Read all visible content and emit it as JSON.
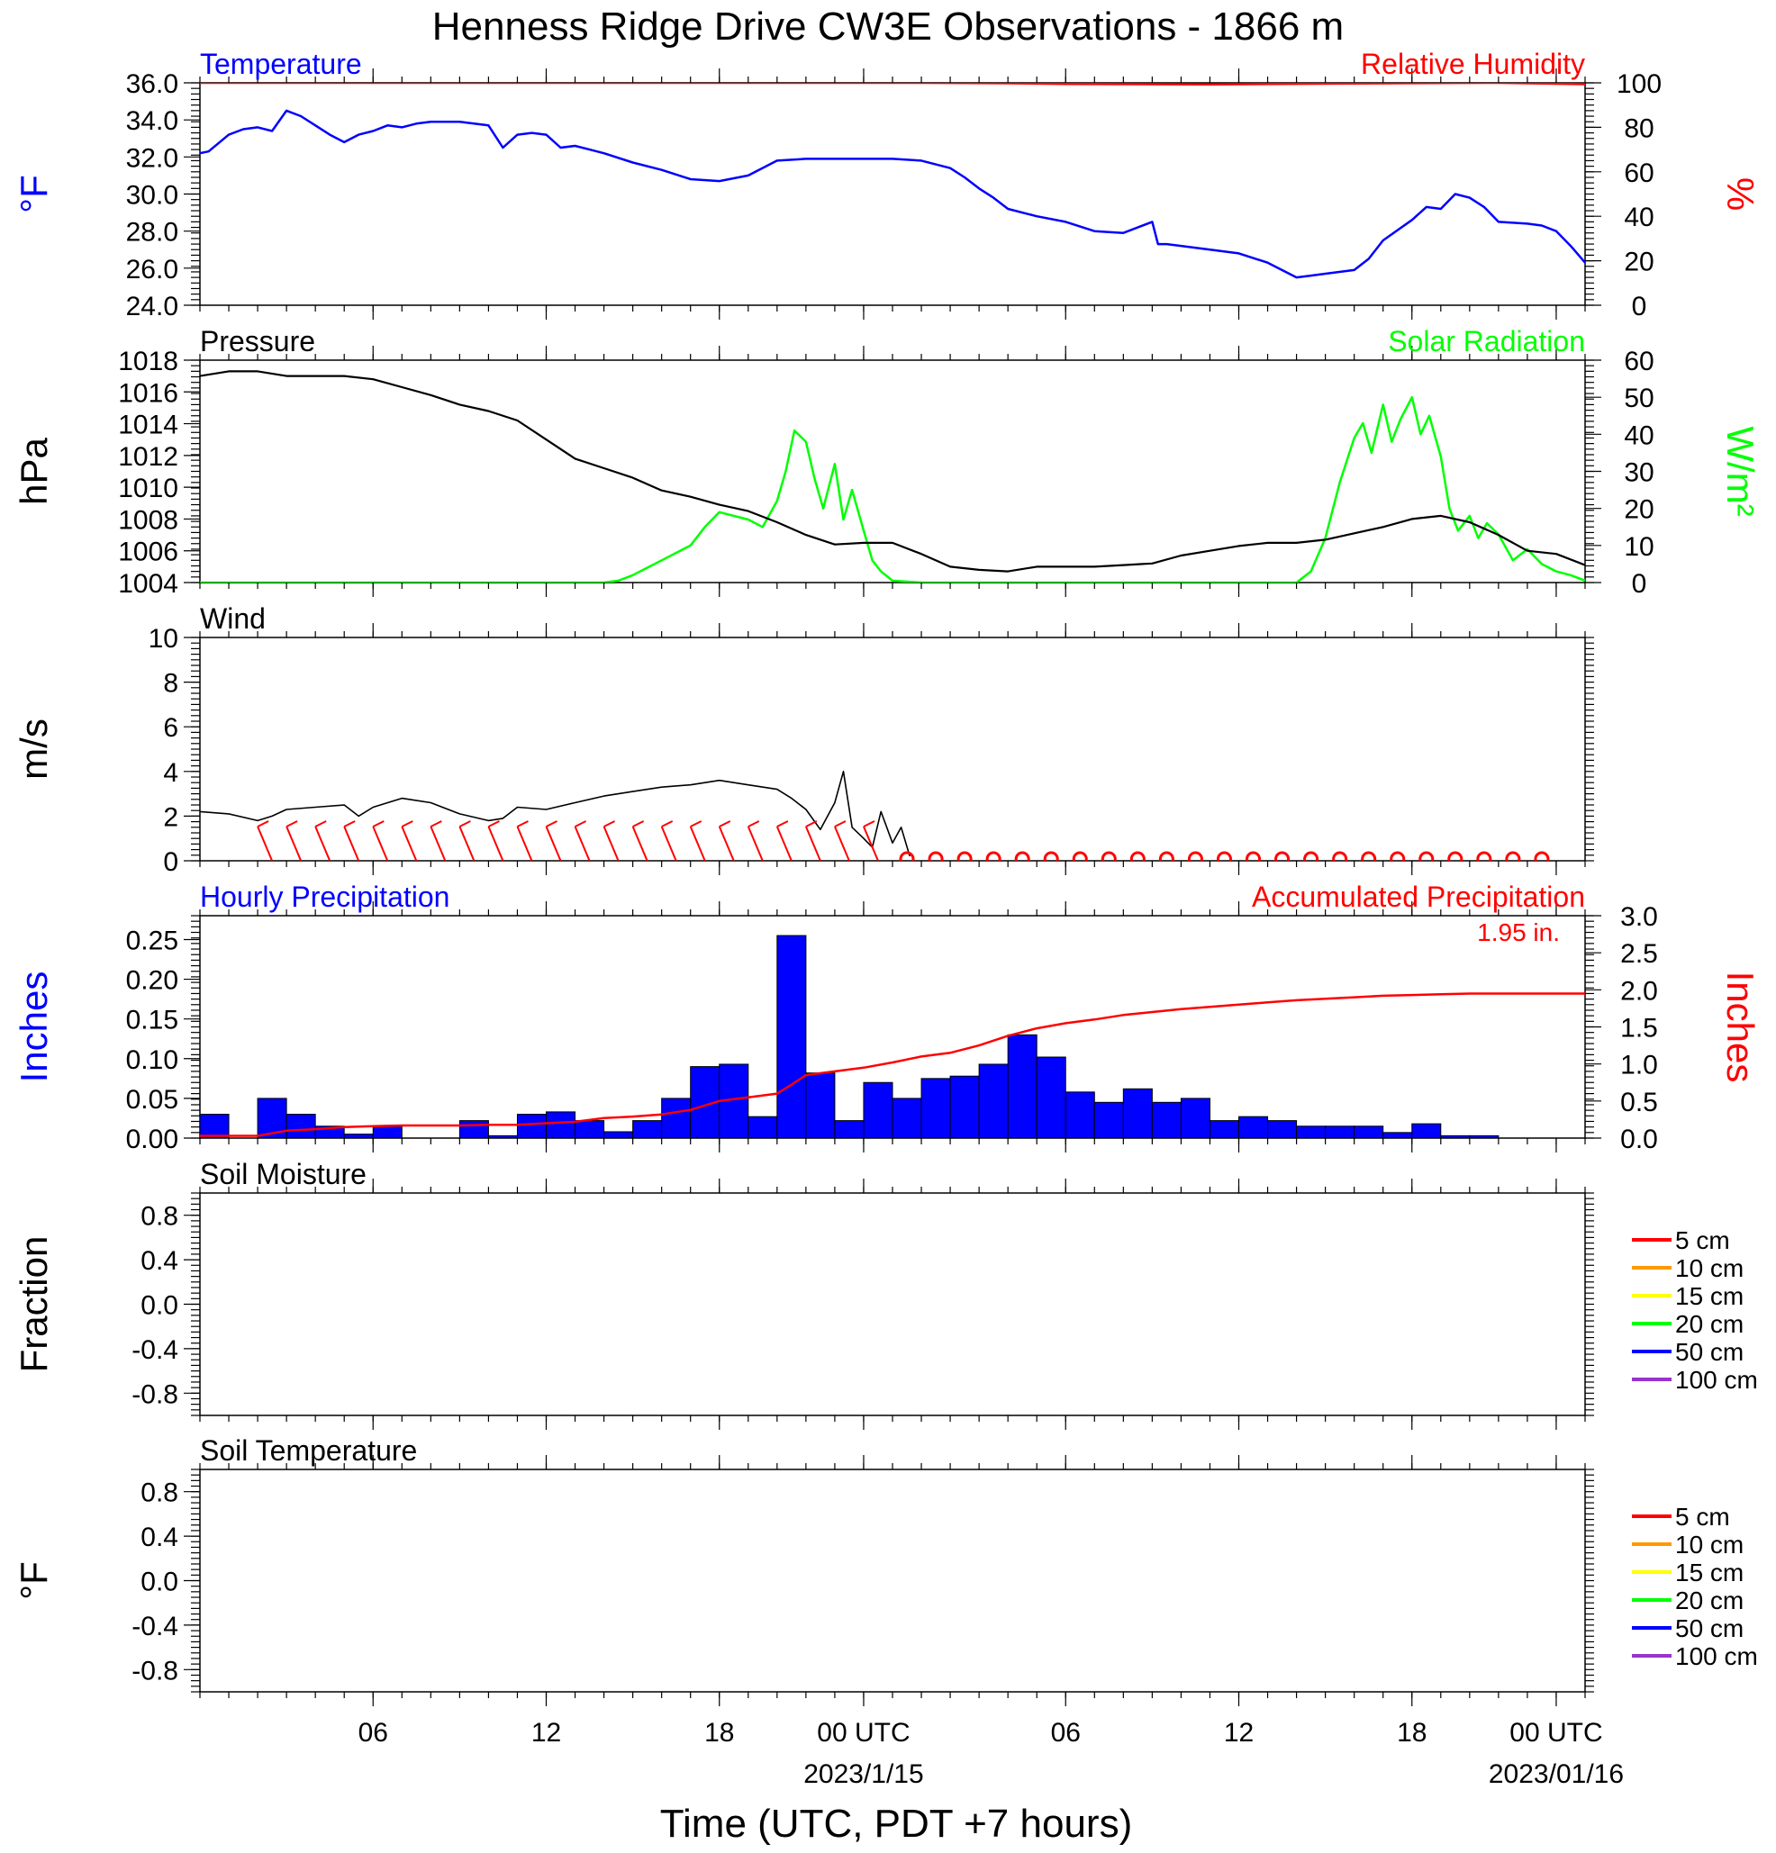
{
  "figure": {
    "title": "Henness Ridge Drive CW3E Observations - 1866 m",
    "xlabel": "Time (UTC, PDT +7 hours)",
    "x_ticks": [
      {
        "hour": 6,
        "label": "06",
        "date": ""
      },
      {
        "hour": 12,
        "label": "12",
        "date": ""
      },
      {
        "hour": 18,
        "label": "18",
        "date": ""
      },
      {
        "hour": 23,
        "label": "00 UTC",
        "date": "2023/1/15"
      },
      {
        "hour": 30,
        "label": "06",
        "date": ""
      },
      {
        "hour": 36,
        "label": "12",
        "date": ""
      },
      {
        "hour": 42,
        "label": "18",
        "date": ""
      },
      {
        "hour": 47,
        "label": "00 UTC",
        "date": "2023/01/16"
      }
    ]
  },
  "colors": {
    "temperature": "#0000ff",
    "humidity": "#ff0000",
    "pressure": "#000000",
    "solar": "#00ff00",
    "wind": "#000000",
    "barbs": "#ff0000",
    "hourly_bars": "#0000ff",
    "accum": "#ff0000"
  },
  "panels": {
    "temperature": {
      "left_title": "Temperature",
      "right_title": "Relative Humidity",
      "ylabel_left": "°F",
      "ylabel_right": "%",
      "yticks_left": [
        "24.0",
        "26.0",
        "28.0",
        "30.0",
        "32.0",
        "34.0",
        "36.0"
      ],
      "yticks_right": [
        "0",
        "20",
        "40",
        "60",
        "80",
        "100"
      ]
    },
    "pressure": {
      "left_title": "Pressure",
      "right_title": "Solar Radiation",
      "ylabel_left": "hPa",
      "ylabel_right": "W/m²",
      "yticks_left": [
        "1004",
        "1006",
        "1008",
        "1010",
        "1012",
        "1014",
        "1016",
        "1018"
      ],
      "yticks_right": [
        "0",
        "10",
        "20",
        "30",
        "40",
        "50",
        "60"
      ]
    },
    "wind": {
      "left_title": "Wind",
      "ylabel_left": "m/s",
      "yticks_left": [
        "0",
        "2",
        "4",
        "6",
        "8",
        "10"
      ]
    },
    "precip": {
      "left_title": "Hourly Precipitation",
      "right_title": "Accumulated Precipitation",
      "total_label": "1.95 in.",
      "ylabel_left": "Inches",
      "ylabel_right": "Inches",
      "yticks_left": [
        "0.00",
        "0.05",
        "0.10",
        "0.15",
        "0.20",
        "0.25"
      ],
      "yticks_right": [
        "0.0",
        "0.5",
        "1.0",
        "1.5",
        "2.0",
        "2.5",
        "3.0"
      ]
    },
    "soil_moisture": {
      "left_title": "Soil Moisture",
      "ylabel_left": "Fraction",
      "yticks_left": [
        "-0.8",
        "-0.4",
        "0.0",
        "0.4",
        "0.8"
      ],
      "legend": [
        {
          "label": "5 cm",
          "color": "#ff0000"
        },
        {
          "label": "10 cm",
          "color": "#ff9900"
        },
        {
          "label": "15 cm",
          "color": "#ffff00"
        },
        {
          "label": "20 cm",
          "color": "#00ff00"
        },
        {
          "label": "50 cm",
          "color": "#0000ff"
        },
        {
          "label": "100 cm",
          "color": "#9933cc"
        }
      ]
    },
    "soil_temperature": {
      "left_title": "Soil Temperature",
      "ylabel_left": "°F",
      "yticks_left": [
        "-0.8",
        "-0.4",
        "0.0",
        "0.4",
        "0.8"
      ],
      "legend": [
        {
          "label": "5 cm",
          "color": "#ff0000"
        },
        {
          "label": "10 cm",
          "color": "#ff9900"
        },
        {
          "label": "15 cm",
          "color": "#ffff00"
        },
        {
          "label": "20 cm",
          "color": "#00ff00"
        },
        {
          "label": "50 cm",
          "color": "#0000ff"
        },
        {
          "label": "100 cm",
          "color": "#9933cc"
        }
      ]
    }
  },
  "chart_data": [
    {
      "type": "line",
      "panel": "temperature",
      "x_unit": "hours (axis starts at 1,00 UTC = hour 23)",
      "xlim": [
        0,
        48
      ],
      "ylim": [
        24,
        36
      ],
      "y2lim": [
        0,
        100
      ],
      "series": [
        {
          "name": "Temperature",
          "axis": "left",
          "x": [
            0,
            0.3,
            1,
            1.5,
            2,
            2.5,
            3,
            3.5,
            4,
            4.5,
            5,
            5.5,
            6,
            6.5,
            7,
            7.5,
            8,
            9,
            10,
            10.5,
            11,
            11.5,
            12,
            12.5,
            13,
            13.5,
            14,
            15,
            16,
            17,
            18,
            19,
            20,
            21,
            22,
            23,
            24,
            25,
            26,
            26.5,
            27,
            27.5,
            28,
            29,
            30,
            31,
            32,
            33,
            33.2,
            33.5,
            34,
            35,
            36,
            37,
            38,
            38.5,
            39,
            40,
            40.5,
            41,
            42,
            42.5,
            43,
            43.5,
            44,
            44.5,
            45,
            46,
            46.5,
            47,
            47.5,
            48
          ],
          "y": [
            32.2,
            32.3,
            33.2,
            33.5,
            33.6,
            33.4,
            34.5,
            34.2,
            33.7,
            33.2,
            32.8,
            33.2,
            33.4,
            33.7,
            33.6,
            33.8,
            33.9,
            33.9,
            33.7,
            32.5,
            33.2,
            33.3,
            33.2,
            32.5,
            32.6,
            32.4,
            32.2,
            31.7,
            31.3,
            30.8,
            30.7,
            31.0,
            31.8,
            31.9,
            31.9,
            31.9,
            31.9,
            31.8,
            31.4,
            30.9,
            30.3,
            29.8,
            29.2,
            28.8,
            28.5,
            28.0,
            27.9,
            28.5,
            27.3,
            27.3,
            27.2,
            27.0,
            26.8,
            26.3,
            25.5,
            25.6,
            25.7,
            25.9,
            26.5,
            27.5,
            28.6,
            29.3,
            29.2,
            30.0,
            29.8,
            29.3,
            28.5,
            28.4,
            28.3,
            28.0,
            27.2,
            26.3
          ]
        },
        {
          "name": "Relative Humidity",
          "axis": "right",
          "x": [
            0,
            5,
            10,
            15,
            20,
            25,
            28,
            30,
            35,
            40,
            45,
            48
          ],
          "y": [
            100,
            100,
            100,
            100,
            100,
            100,
            99.8,
            99.5,
            99.3,
            99.7,
            100,
            99.4
          ]
        }
      ]
    },
    {
      "type": "line",
      "panel": "pressure",
      "xlim": [
        0,
        48
      ],
      "ylim": [
        1004,
        1018
      ],
      "y2lim": [
        0,
        60
      ],
      "series": [
        {
          "name": "Pressure",
          "axis": "left",
          "x": [
            0,
            1,
            2,
            3,
            4,
            5,
            6,
            7,
            8,
            9,
            10,
            11,
            12,
            13,
            14,
            15,
            16,
            17,
            18,
            19,
            20,
            21,
            22,
            23,
            24,
            25,
            26,
            27,
            28,
            29,
            30,
            31,
            32,
            33,
            34,
            35,
            36,
            37,
            38,
            39,
            40,
            41,
            42,
            43,
            44,
            45,
            46,
            47,
            48
          ],
          "y": [
            1017.0,
            1017.3,
            1017.3,
            1017.0,
            1017.0,
            1017.0,
            1016.8,
            1016.3,
            1015.8,
            1015.2,
            1014.8,
            1014.2,
            1013.0,
            1011.8,
            1011.2,
            1010.6,
            1009.8,
            1009.4,
            1008.9,
            1008.5,
            1007.8,
            1007.0,
            1006.4,
            1006.5,
            1006.5,
            1005.8,
            1005.0,
            1004.8,
            1004.7,
            1005.0,
            1005.0,
            1005.0,
            1005.1,
            1005.2,
            1005.7,
            1006.0,
            1006.3,
            1006.5,
            1006.5,
            1006.7,
            1007.1,
            1007.5,
            1008.0,
            1008.2,
            1007.8,
            1007.0,
            1006.0,
            1005.8,
            1005.1
          ]
        },
        {
          "name": "Solar Radiation",
          "axis": "right",
          "x": [
            0,
            14,
            14.5,
            15,
            16,
            17,
            17.5,
            18,
            18.5,
            19,
            19.5,
            20,
            20.3,
            20.6,
            21,
            21.3,
            21.6,
            22,
            22.3,
            22.6,
            23,
            23.3,
            23.6,
            24,
            25,
            26,
            30,
            35,
            38,
            38.5,
            39,
            39.5,
            40,
            40.3,
            40.6,
            41,
            41.3,
            41.6,
            42,
            42.3,
            42.6,
            43,
            43.3,
            43.6,
            44,
            44.3,
            44.6,
            45,
            45.5,
            46,
            46.5,
            47,
            47.5,
            48
          ],
          "y": [
            0,
            0,
            0.5,
            2,
            6,
            10,
            15,
            19,
            18,
            17,
            15,
            22,
            30,
            41,
            38,
            28,
            20,
            32,
            17,
            25,
            14,
            6,
            3,
            0.5,
            0,
            0,
            0,
            0,
            0,
            3,
            12,
            27,
            39,
            43,
            35,
            48,
            38,
            44,
            50,
            40,
            45,
            34,
            20,
            14,
            18,
            12,
            16,
            13,
            6,
            9,
            5,
            3,
            2,
            0.5
          ]
        }
      ]
    },
    {
      "type": "line",
      "panel": "wind",
      "xlim": [
        0,
        48
      ],
      "ylim": [
        0,
        10
      ],
      "series": [
        {
          "name": "Wind",
          "axis": "left",
          "x": [
            0,
            1,
            2,
            2.5,
            3,
            4,
            5,
            5.5,
            6,
            7,
            8,
            9,
            10,
            10.5,
            11,
            12,
            13,
            14,
            15,
            16,
            17,
            18,
            19,
            20,
            20.5,
            21,
            21.5,
            22,
            22.3,
            22.6,
            23,
            23.3,
            23.6,
            24,
            24.3,
            24.6
          ],
          "y": [
            2.2,
            2.1,
            1.8,
            2.0,
            2.3,
            2.4,
            2.5,
            2.0,
            2.4,
            2.8,
            2.6,
            2.1,
            1.8,
            1.9,
            2.4,
            2.3,
            2.6,
            2.9,
            3.1,
            3.3,
            3.4,
            3.6,
            3.4,
            3.2,
            2.8,
            2.3,
            1.4,
            2.6,
            4.0,
            1.5,
            1.0,
            0.6,
            2.2,
            0.8,
            1.5,
            0.2
          ]
        },
        {
          "name": "Barbs",
          "axis": "left",
          "x": [
            2.5,
            3.5,
            4.5,
            5.5,
            6.5,
            7.5,
            8.5,
            9.5,
            10.5,
            11.5,
            12.5,
            13.5,
            14.5,
            15.5,
            16.5,
            17.5,
            18.5,
            19.5,
            20.5,
            21.5,
            22.5,
            23.5
          ],
          "y": [
            2,
            2,
            2,
            2,
            2,
            2,
            2,
            2,
            2,
            2,
            2,
            2,
            2,
            2,
            2,
            2,
            2,
            2,
            2,
            2,
            2,
            2
          ]
        },
        {
          "name": "Calm",
          "axis": "left",
          "x": [
            24.5,
            25.5,
            26.5,
            27.5,
            28.5,
            29.5,
            30.5,
            31.5,
            32.5,
            33.5,
            34.5,
            35.5,
            36.5,
            37.5,
            38.5,
            39.5,
            40.5,
            41.5,
            42.5,
            43.5,
            44.5,
            45.5,
            46.5
          ],
          "y": [
            0,
            0,
            0,
            0,
            0,
            0,
            0,
            0,
            0,
            0,
            0,
            0,
            0,
            0,
            0,
            0,
            0,
            0,
            0,
            0,
            0,
            0,
            0
          ]
        }
      ]
    },
    {
      "type": "bar",
      "panel": "precip",
      "xlim": [
        0,
        48
      ],
      "ylim": [
        0,
        0.28
      ],
      "y2lim": [
        0,
        3.0
      ],
      "series": [
        {
          "name": "Hourly Precipitation",
          "axis": "left",
          "x": [
            0,
            1,
            2,
            3,
            4,
            5,
            6,
            7,
            8,
            9,
            10,
            11,
            12,
            13,
            14,
            15,
            16,
            17,
            18,
            19,
            20,
            21,
            22,
            23,
            24,
            25,
            26,
            27,
            28,
            29,
            30,
            31,
            32,
            33,
            34,
            35,
            36,
            37,
            38,
            39,
            40,
            41,
            42,
            43,
            44,
            45,
            46,
            47
          ],
          "values": [
            0.03,
            0,
            0.05,
            0.03,
            0.015,
            0.005,
            0.015,
            0,
            0,
            0.022,
            0.003,
            0.03,
            0.033,
            0.022,
            0.008,
            0.022,
            0.05,
            0.09,
            0.093,
            0.027,
            0.255,
            0.082,
            0.022,
            0.07,
            0.05,
            0.075,
            0.078,
            0.093,
            0.13,
            0.102,
            0.058,
            0.045,
            0.062,
            0.045,
            0.05,
            0.022,
            0.027,
            0.022,
            0.015,
            0.015,
            0.015,
            0.007,
            0.018,
            0.003,
            0.003,
            0,
            0,
            0
          ]
        },
        {
          "name": "Accumulated Precipitation",
          "axis": "right",
          "x": [
            0,
            1,
            2,
            3,
            4,
            5,
            6,
            7,
            8,
            9,
            10,
            11,
            12,
            13,
            14,
            15,
            16,
            17,
            18,
            19,
            20,
            20.5,
            21,
            22,
            23,
            24,
            25,
            26,
            27,
            28,
            29,
            30,
            31,
            32,
            33,
            34,
            35,
            36,
            37,
            38,
            39,
            40,
            41,
            42,
            43,
            44,
            45,
            46,
            47,
            48
          ],
          "y": [
            0.03,
            0.03,
            0.03,
            0.1,
            0.12,
            0.15,
            0.16,
            0.17,
            0.17,
            0.17,
            0.18,
            0.18,
            0.2,
            0.22,
            0.27,
            0.29,
            0.32,
            0.38,
            0.5,
            0.55,
            0.6,
            0.72,
            0.85,
            0.9,
            0.95,
            1.02,
            1.1,
            1.15,
            1.25,
            1.38,
            1.48,
            1.55,
            1.6,
            1.66,
            1.7,
            1.74,
            1.77,
            1.8,
            1.83,
            1.86,
            1.88,
            1.9,
            1.92,
            1.93,
            1.94,
            1.95,
            1.95,
            1.95,
            1.95,
            1.95
          ]
        }
      ]
    },
    {
      "type": "line",
      "panel": "soil_moisture",
      "xlim": [
        0,
        48
      ],
      "ylim": [
        -1,
        1
      ],
      "series": []
    },
    {
      "type": "line",
      "panel": "soil_temperature",
      "xlim": [
        0,
        48
      ],
      "ylim": [
        -1,
        1
      ],
      "series": []
    }
  ]
}
